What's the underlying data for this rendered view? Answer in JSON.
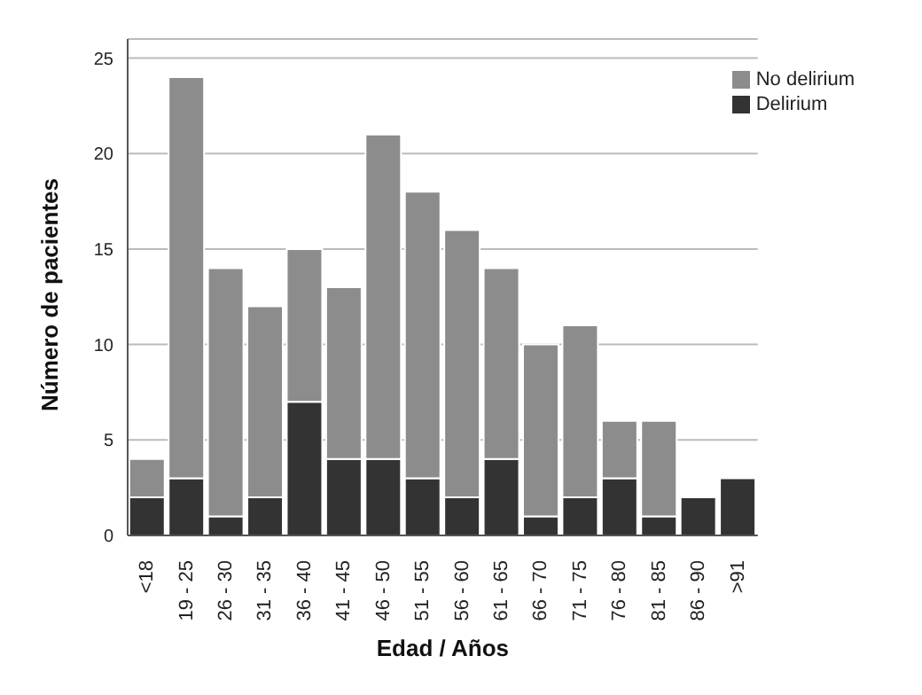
{
  "chart_data": {
    "type": "bar",
    "stacked": true,
    "xlabel": "Edad / Años",
    "ylabel": "Número de pacientes",
    "categories": [
      "<18",
      "19 - 25",
      "26 - 30",
      "31 - 35",
      "36 - 40",
      "41 - 45",
      "46 - 50",
      "51 - 55",
      "56 - 60",
      "61 - 65",
      "66 - 70",
      "71 - 75",
      "76 - 80",
      "81 - 85",
      "86 - 90",
      ">91"
    ],
    "series": [
      {
        "name": "Delirium",
        "color": "#333333",
        "values": [
          2,
          3,
          1,
          2,
          7,
          4,
          4,
          3,
          2,
          4,
          1,
          2,
          3,
          1,
          2,
          3
        ]
      },
      {
        "name": "No delirium",
        "color": "#8c8c8c",
        "values": [
          2,
          21,
          13,
          10,
          8,
          9,
          17,
          15,
          14,
          10,
          9,
          9,
          3,
          5,
          0,
          0
        ]
      }
    ],
    "ylim": [
      0,
      26
    ],
    "yticks": [
      0,
      5,
      10,
      15,
      20,
      25
    ],
    "grid": "y",
    "legend": "top right"
  }
}
